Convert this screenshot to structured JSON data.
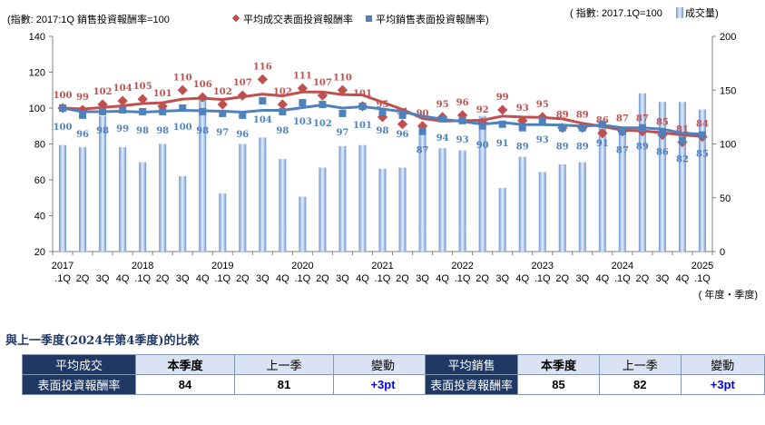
{
  "chart_data": {
    "type": "line+bar",
    "title_left": "(指數: 2017:1Q 銷售投資報酬率=100",
    "title_right": "( 指數: 2017.1Q=100",
    "xlabel": "( 年度‧季度)",
    "legend": [
      "平均成交表面投資報酬率",
      "平均銷售表面投資報酬率",
      "成交量)"
    ],
    "ylim_left": [
      20,
      140
    ],
    "yticks_left": [
      "20",
      "40",
      "60",
      "80",
      "100",
      "120",
      "140"
    ],
    "ylim_right": [
      0,
      200
    ],
    "yticks_right": [
      "0",
      "50",
      "100",
      "150",
      "200"
    ],
    "years": [
      "2017",
      "2018",
      "2019",
      "2020",
      "2021",
      "2022",
      "2023",
      "2024",
      "2025"
    ],
    "quarters": [
      ".1Q",
      "2Q",
      "3Q",
      "4Q",
      ".1Q",
      "2Q",
      "3Q",
      "4Q",
      ".1Q",
      "2Q",
      "3Q",
      "4Q",
      ".1Q",
      "2Q",
      "3Q",
      "4Q",
      ".1Q",
      "2Q",
      "3Q",
      "4Q",
      ".1Q",
      "2Q",
      "3Q",
      "4Q",
      ".1Q",
      "2Q",
      "3Q",
      "4Q",
      ".1Q",
      "2Q",
      "3Q",
      "4Q",
      ".1Q"
    ],
    "series": [
      {
        "name": "平均成交表面投資報酬率",
        "color": "#c0504d",
        "values": [
          100,
          99,
          102,
          104,
          105,
          101,
          110,
          106,
          102,
          107,
          116,
          102,
          111,
          107,
          110,
          101,
          95,
          91,
          90,
          95,
          96,
          92,
          99,
          93,
          95,
          89,
          89,
          86,
          87,
          87,
          85,
          81,
          84
        ]
      },
      {
        "name": "平均銷售表面投資報酬率",
        "color": "#4f81bd",
        "values": [
          100,
          96,
          98,
          99,
          98,
          98,
          100,
          98,
          97,
          96,
          104,
          98,
          103,
          102,
          97,
          101,
          98,
          96,
          87,
          94,
          93,
          90,
          91,
          89,
          93,
          89,
          89,
          91,
          87,
          89,
          86,
          82,
          85
        ]
      },
      {
        "name": "成交量",
        "color": "#9bb7e0",
        "values": [
          99,
          97,
          126,
          97,
          83,
          100,
          70,
          143,
          54,
          100,
          106,
          86,
          51,
          78,
          98,
          99,
          77,
          78,
          111,
          96,
          94,
          126,
          59,
          88,
          74,
          81,
          83,
          116,
          116,
          147,
          139,
          139,
          132
        ]
      }
    ]
  },
  "compare": {
    "title": "與上一季度(2024年第4季度)的比較",
    "deal": {
      "label1": "平均成交",
      "label2": "表面投資報酬率",
      "h1": "本季度",
      "h2": "上一季",
      "h3": "變動",
      "cur": "84",
      "prev": "81",
      "chg": "+3pt"
    },
    "sale": {
      "label1": "平均銷售",
      "label2": "表面投資報酬率",
      "h1": "本季度",
      "h2": "上一季",
      "h3": "變動",
      "cur": "85",
      "prev": "82",
      "chg": "+3pt"
    }
  }
}
